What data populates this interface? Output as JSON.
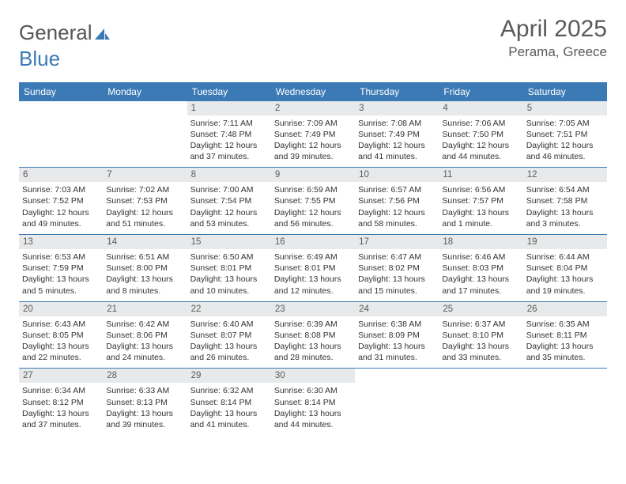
{
  "brand": {
    "name_part1": "General",
    "name_part2": "Blue"
  },
  "title": {
    "month": "April 2025",
    "location": "Perama, Greece"
  },
  "colors": {
    "header_bg": "#3c7ab5",
    "header_text": "#ffffff",
    "daynum_bg": "#e7e9ea",
    "daynum_text": "#5a5a5a",
    "divider": "#3c7ab5",
    "body_text": "#333333",
    "title_text": "#5a5a5a",
    "background": "#ffffff"
  },
  "dayNames": [
    "Sunday",
    "Monday",
    "Tuesday",
    "Wednesday",
    "Thursday",
    "Friday",
    "Saturday"
  ],
  "weeks": [
    [
      {
        "day": null
      },
      {
        "day": null
      },
      {
        "day": 1,
        "sunrise": "7:11 AM",
        "sunset": "7:48 PM",
        "daylight": "12 hours and 37 minutes."
      },
      {
        "day": 2,
        "sunrise": "7:09 AM",
        "sunset": "7:49 PM",
        "daylight": "12 hours and 39 minutes."
      },
      {
        "day": 3,
        "sunrise": "7:08 AM",
        "sunset": "7:49 PM",
        "daylight": "12 hours and 41 minutes."
      },
      {
        "day": 4,
        "sunrise": "7:06 AM",
        "sunset": "7:50 PM",
        "daylight": "12 hours and 44 minutes."
      },
      {
        "day": 5,
        "sunrise": "7:05 AM",
        "sunset": "7:51 PM",
        "daylight": "12 hours and 46 minutes."
      }
    ],
    [
      {
        "day": 6,
        "sunrise": "7:03 AM",
        "sunset": "7:52 PM",
        "daylight": "12 hours and 49 minutes."
      },
      {
        "day": 7,
        "sunrise": "7:02 AM",
        "sunset": "7:53 PM",
        "daylight": "12 hours and 51 minutes."
      },
      {
        "day": 8,
        "sunrise": "7:00 AM",
        "sunset": "7:54 PM",
        "daylight": "12 hours and 53 minutes."
      },
      {
        "day": 9,
        "sunrise": "6:59 AM",
        "sunset": "7:55 PM",
        "daylight": "12 hours and 56 minutes."
      },
      {
        "day": 10,
        "sunrise": "6:57 AM",
        "sunset": "7:56 PM",
        "daylight": "12 hours and 58 minutes."
      },
      {
        "day": 11,
        "sunrise": "6:56 AM",
        "sunset": "7:57 PM",
        "daylight": "13 hours and 1 minute."
      },
      {
        "day": 12,
        "sunrise": "6:54 AM",
        "sunset": "7:58 PM",
        "daylight": "13 hours and 3 minutes."
      }
    ],
    [
      {
        "day": 13,
        "sunrise": "6:53 AM",
        "sunset": "7:59 PM",
        "daylight": "13 hours and 5 minutes."
      },
      {
        "day": 14,
        "sunrise": "6:51 AM",
        "sunset": "8:00 PM",
        "daylight": "13 hours and 8 minutes."
      },
      {
        "day": 15,
        "sunrise": "6:50 AM",
        "sunset": "8:01 PM",
        "daylight": "13 hours and 10 minutes."
      },
      {
        "day": 16,
        "sunrise": "6:49 AM",
        "sunset": "8:01 PM",
        "daylight": "13 hours and 12 minutes."
      },
      {
        "day": 17,
        "sunrise": "6:47 AM",
        "sunset": "8:02 PM",
        "daylight": "13 hours and 15 minutes."
      },
      {
        "day": 18,
        "sunrise": "6:46 AM",
        "sunset": "8:03 PM",
        "daylight": "13 hours and 17 minutes."
      },
      {
        "day": 19,
        "sunrise": "6:44 AM",
        "sunset": "8:04 PM",
        "daylight": "13 hours and 19 minutes."
      }
    ],
    [
      {
        "day": 20,
        "sunrise": "6:43 AM",
        "sunset": "8:05 PM",
        "daylight": "13 hours and 22 minutes."
      },
      {
        "day": 21,
        "sunrise": "6:42 AM",
        "sunset": "8:06 PM",
        "daylight": "13 hours and 24 minutes."
      },
      {
        "day": 22,
        "sunrise": "6:40 AM",
        "sunset": "8:07 PM",
        "daylight": "13 hours and 26 minutes."
      },
      {
        "day": 23,
        "sunrise": "6:39 AM",
        "sunset": "8:08 PM",
        "daylight": "13 hours and 28 minutes."
      },
      {
        "day": 24,
        "sunrise": "6:38 AM",
        "sunset": "8:09 PM",
        "daylight": "13 hours and 31 minutes."
      },
      {
        "day": 25,
        "sunrise": "6:37 AM",
        "sunset": "8:10 PM",
        "daylight": "13 hours and 33 minutes."
      },
      {
        "day": 26,
        "sunrise": "6:35 AM",
        "sunset": "8:11 PM",
        "daylight": "13 hours and 35 minutes."
      }
    ],
    [
      {
        "day": 27,
        "sunrise": "6:34 AM",
        "sunset": "8:12 PM",
        "daylight": "13 hours and 37 minutes."
      },
      {
        "day": 28,
        "sunrise": "6:33 AM",
        "sunset": "8:13 PM",
        "daylight": "13 hours and 39 minutes."
      },
      {
        "day": 29,
        "sunrise": "6:32 AM",
        "sunset": "8:14 PM",
        "daylight": "13 hours and 41 minutes."
      },
      {
        "day": 30,
        "sunrise": "6:30 AM",
        "sunset": "8:14 PM",
        "daylight": "13 hours and 44 minutes."
      },
      {
        "day": null
      },
      {
        "day": null
      },
      {
        "day": null
      }
    ]
  ],
  "labels": {
    "sunrise": "Sunrise:",
    "sunset": "Sunset:",
    "daylight": "Daylight:"
  }
}
